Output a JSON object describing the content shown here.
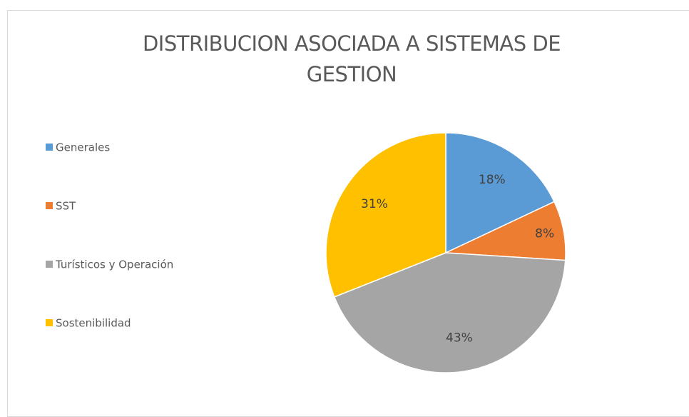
{
  "chart_data": {
    "type": "pie",
    "title": "DISTRIBUCION ASOCIADA A SISTEMAS DE GESTION",
    "categories": [
      "Generales",
      "SST",
      "Turísticos y Operación",
      "Sostenibilidad"
    ],
    "values": [
      18,
      8,
      43,
      31
    ],
    "value_labels": [
      "18%",
      "8%",
      "43%",
      "31%"
    ],
    "colors": [
      "#5b9bd5",
      "#ed7d31",
      "#a5a5a5",
      "#ffc000"
    ],
    "legend": "left"
  }
}
